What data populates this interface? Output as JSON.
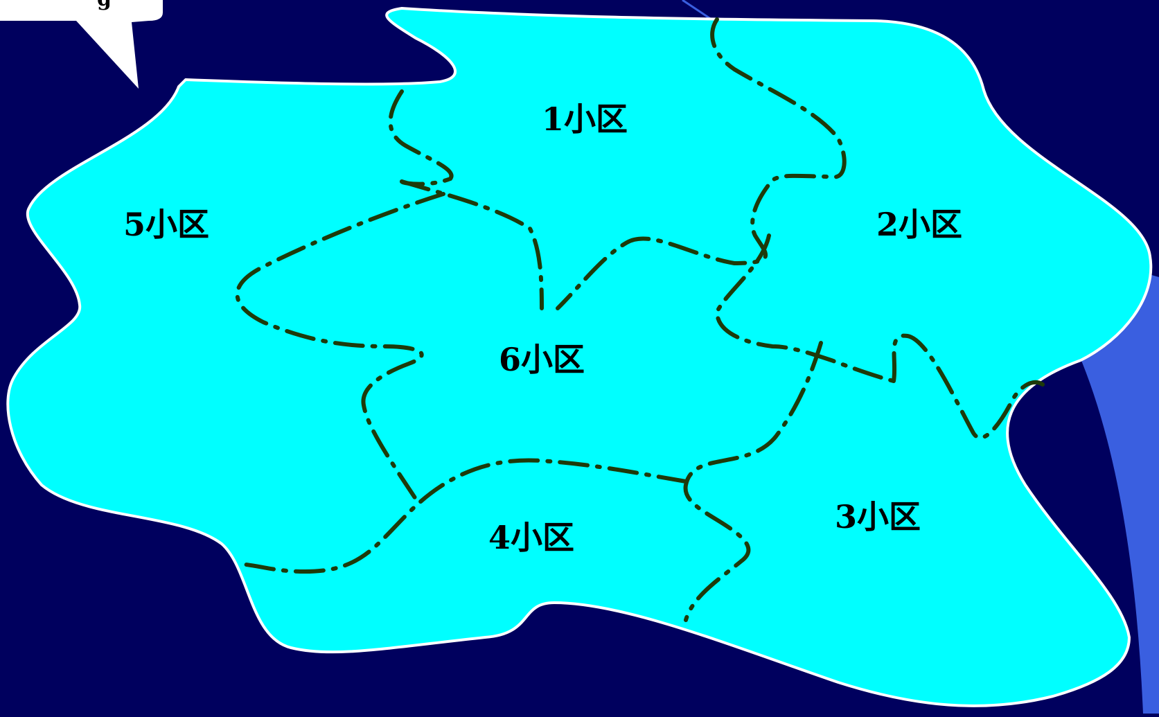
{
  "diagram": {
    "colors": {
      "background": "#00005E",
      "region_fill": "#00FFFF",
      "region_outline": "#FFFFFF",
      "boundary_line": "#1E3A0A",
      "right_band": "#3A5FE0",
      "callout_fill": "#FFFFFF"
    },
    "callout": {
      "text": "g"
    },
    "zones": [
      {
        "id": "zone-1",
        "label": "1小区"
      },
      {
        "id": "zone-2",
        "label": "2小区"
      },
      {
        "id": "zone-3",
        "label": "3小区"
      },
      {
        "id": "zone-4",
        "label": "4小区"
      },
      {
        "id": "zone-5",
        "label": "5小区"
      },
      {
        "id": "zone-6",
        "label": "6小区"
      }
    ]
  }
}
